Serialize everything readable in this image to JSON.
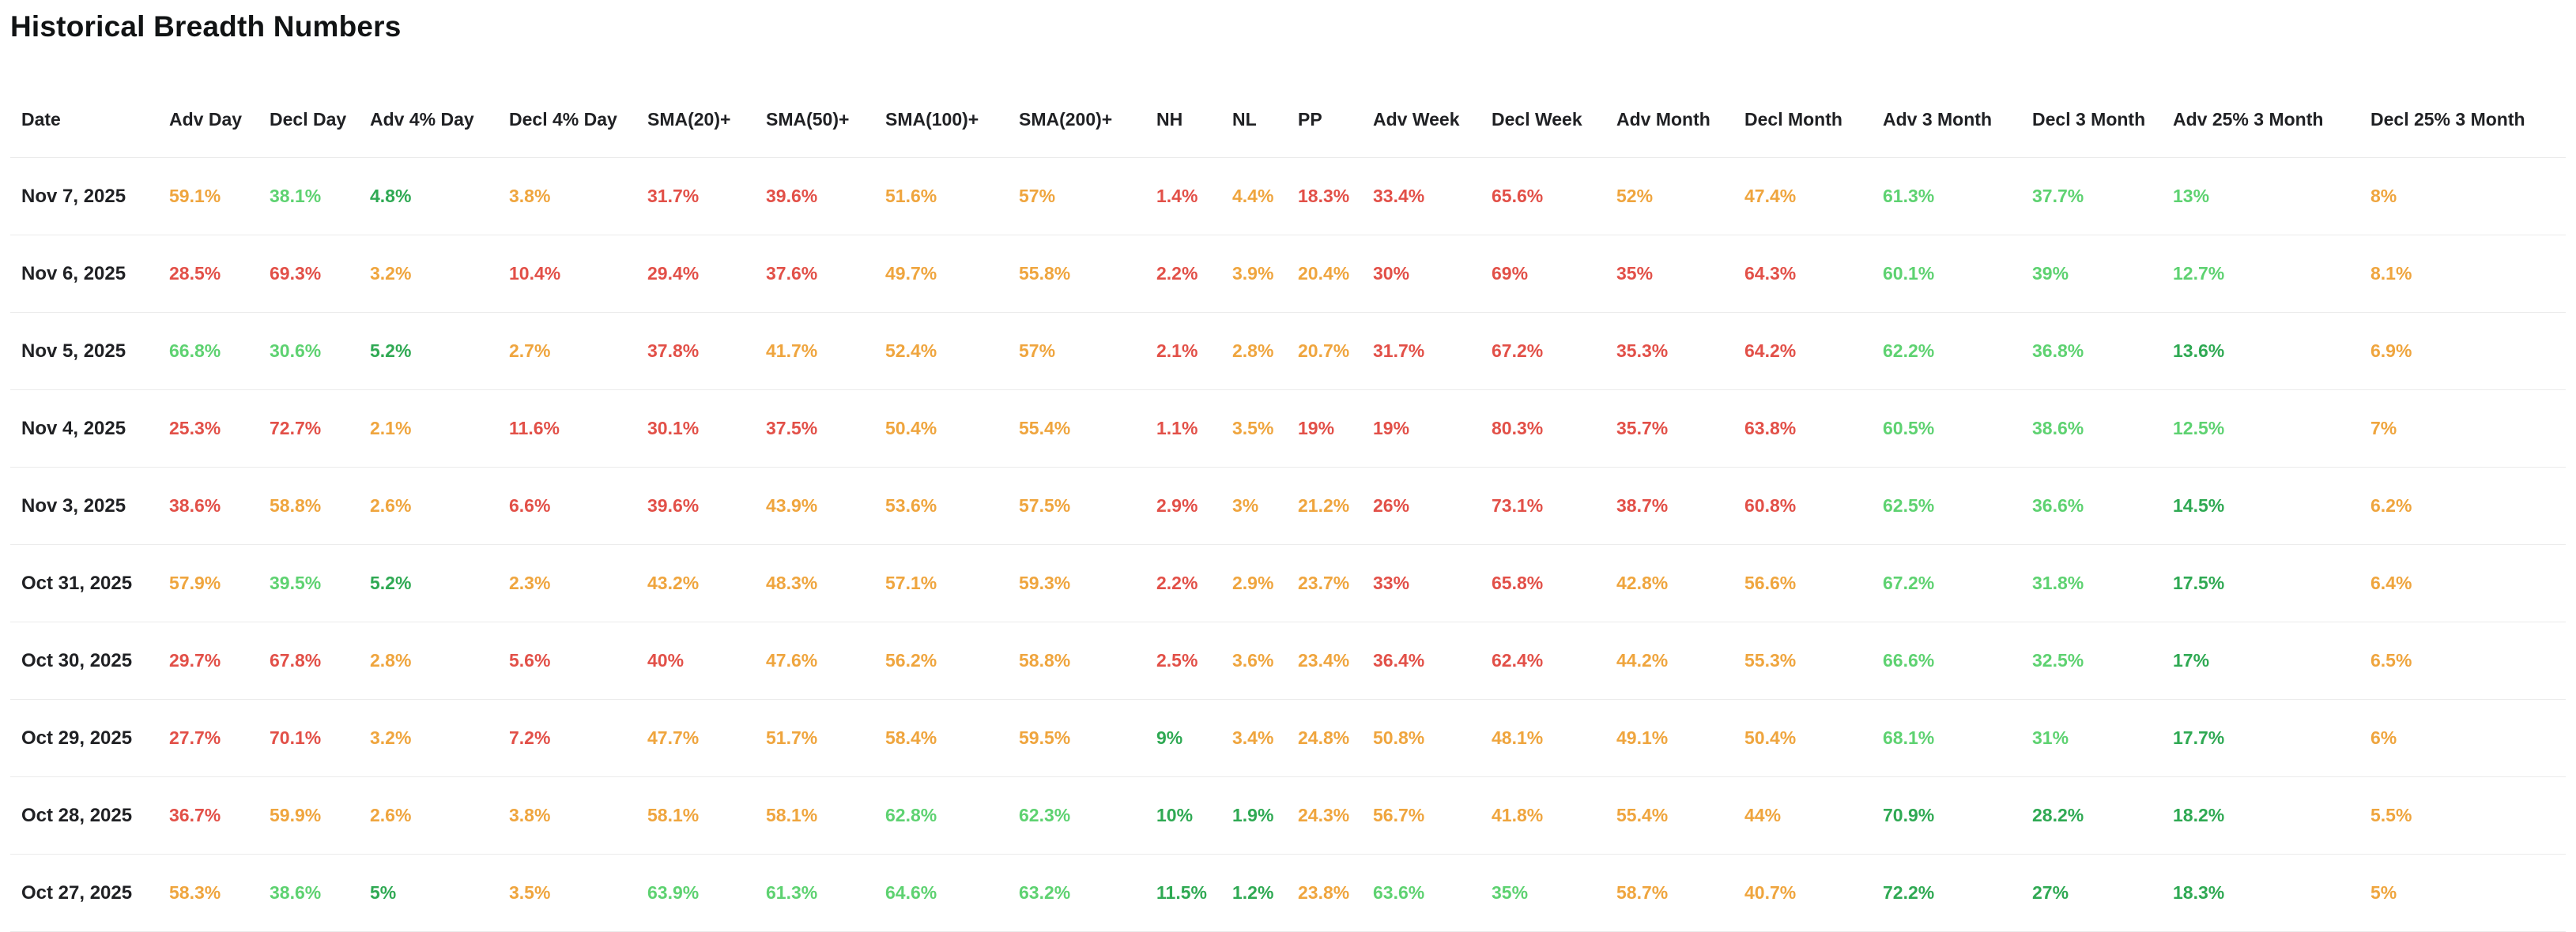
{
  "title": "Historical Breadth Numbers",
  "colors": {
    "red": "#e25048",
    "orange": "#efa53e",
    "green": "#5ed271",
    "dark_green": "#2fa953",
    "header_text": "#202124",
    "date_text": "#202124",
    "row_border": "#ebebeb"
  },
  "table": {
    "columns": [
      "Date",
      "Adv Day",
      "Decl Day",
      "Adv 4% Day",
      "Decl 4% Day",
      "SMA(20)+",
      "SMA(50)+",
      "SMA(100)+",
      "SMA(200)+",
      "NH",
      "NL",
      "PP",
      "Adv Week",
      "Decl Week",
      "Adv Month",
      "Decl Month",
      "Adv 3 Month",
      "Decl 3 Month",
      "Adv 25% 3 Month",
      "Decl 25% 3 Month"
    ],
    "rows": [
      {
        "date": "Nov 7, 2025",
        "cells": [
          [
            "59.1%",
            "orange"
          ],
          [
            "38.1%",
            "green"
          ],
          [
            "4.8%",
            "dark_green"
          ],
          [
            "3.8%",
            "orange"
          ],
          [
            "31.7%",
            "red"
          ],
          [
            "39.6%",
            "red"
          ],
          [
            "51.6%",
            "orange"
          ],
          [
            "57%",
            "orange"
          ],
          [
            "1.4%",
            "red"
          ],
          [
            "4.4%",
            "orange"
          ],
          [
            "18.3%",
            "red"
          ],
          [
            "33.4%",
            "red"
          ],
          [
            "65.6%",
            "red"
          ],
          [
            "52%",
            "orange"
          ],
          [
            "47.4%",
            "orange"
          ],
          [
            "61.3%",
            "green"
          ],
          [
            "37.7%",
            "green"
          ],
          [
            "13%",
            "green"
          ],
          [
            "8%",
            "orange"
          ]
        ]
      },
      {
        "date": "Nov 6, 2025",
        "cells": [
          [
            "28.5%",
            "red"
          ],
          [
            "69.3%",
            "red"
          ],
          [
            "3.2%",
            "orange"
          ],
          [
            "10.4%",
            "red"
          ],
          [
            "29.4%",
            "red"
          ],
          [
            "37.6%",
            "red"
          ],
          [
            "49.7%",
            "orange"
          ],
          [
            "55.8%",
            "orange"
          ],
          [
            "2.2%",
            "red"
          ],
          [
            "3.9%",
            "orange"
          ],
          [
            "20.4%",
            "orange"
          ],
          [
            "30%",
            "red"
          ],
          [
            "69%",
            "red"
          ],
          [
            "35%",
            "red"
          ],
          [
            "64.3%",
            "red"
          ],
          [
            "60.1%",
            "green"
          ],
          [
            "39%",
            "green"
          ],
          [
            "12.7%",
            "green"
          ],
          [
            "8.1%",
            "orange"
          ]
        ]
      },
      {
        "date": "Nov 5, 2025",
        "cells": [
          [
            "66.8%",
            "green"
          ],
          [
            "30.6%",
            "green"
          ],
          [
            "5.2%",
            "dark_green"
          ],
          [
            "2.7%",
            "orange"
          ],
          [
            "37.8%",
            "red"
          ],
          [
            "41.7%",
            "orange"
          ],
          [
            "52.4%",
            "orange"
          ],
          [
            "57%",
            "orange"
          ],
          [
            "2.1%",
            "red"
          ],
          [
            "2.8%",
            "orange"
          ],
          [
            "20.7%",
            "orange"
          ],
          [
            "31.7%",
            "red"
          ],
          [
            "67.2%",
            "red"
          ],
          [
            "35.3%",
            "red"
          ],
          [
            "64.2%",
            "red"
          ],
          [
            "62.2%",
            "green"
          ],
          [
            "36.8%",
            "green"
          ],
          [
            "13.6%",
            "dark_green"
          ],
          [
            "6.9%",
            "orange"
          ]
        ]
      },
      {
        "date": "Nov 4, 2025",
        "cells": [
          [
            "25.3%",
            "red"
          ],
          [
            "72.7%",
            "red"
          ],
          [
            "2.1%",
            "orange"
          ],
          [
            "11.6%",
            "red"
          ],
          [
            "30.1%",
            "red"
          ],
          [
            "37.5%",
            "red"
          ],
          [
            "50.4%",
            "orange"
          ],
          [
            "55.4%",
            "orange"
          ],
          [
            "1.1%",
            "red"
          ],
          [
            "3.5%",
            "orange"
          ],
          [
            "19%",
            "red"
          ],
          [
            "19%",
            "red"
          ],
          [
            "80.3%",
            "red"
          ],
          [
            "35.7%",
            "red"
          ],
          [
            "63.8%",
            "red"
          ],
          [
            "60.5%",
            "green"
          ],
          [
            "38.6%",
            "green"
          ],
          [
            "12.5%",
            "green"
          ],
          [
            "7%",
            "orange"
          ]
        ]
      },
      {
        "date": "Nov 3, 2025",
        "cells": [
          [
            "38.6%",
            "red"
          ],
          [
            "58.8%",
            "orange"
          ],
          [
            "2.6%",
            "orange"
          ],
          [
            "6.6%",
            "red"
          ],
          [
            "39.6%",
            "red"
          ],
          [
            "43.9%",
            "orange"
          ],
          [
            "53.6%",
            "orange"
          ],
          [
            "57.5%",
            "orange"
          ],
          [
            "2.9%",
            "red"
          ],
          [
            "3%",
            "orange"
          ],
          [
            "21.2%",
            "orange"
          ],
          [
            "26%",
            "red"
          ],
          [
            "73.1%",
            "red"
          ],
          [
            "38.7%",
            "red"
          ],
          [
            "60.8%",
            "red"
          ],
          [
            "62.5%",
            "green"
          ],
          [
            "36.6%",
            "green"
          ],
          [
            "14.5%",
            "dark_green"
          ],
          [
            "6.2%",
            "orange"
          ]
        ]
      },
      {
        "date": "Oct 31, 2025",
        "cells": [
          [
            "57.9%",
            "orange"
          ],
          [
            "39.5%",
            "green"
          ],
          [
            "5.2%",
            "dark_green"
          ],
          [
            "2.3%",
            "orange"
          ],
          [
            "43.2%",
            "orange"
          ],
          [
            "48.3%",
            "orange"
          ],
          [
            "57.1%",
            "orange"
          ],
          [
            "59.3%",
            "orange"
          ],
          [
            "2.2%",
            "red"
          ],
          [
            "2.9%",
            "orange"
          ],
          [
            "23.7%",
            "orange"
          ],
          [
            "33%",
            "red"
          ],
          [
            "65.8%",
            "red"
          ],
          [
            "42.8%",
            "orange"
          ],
          [
            "56.6%",
            "orange"
          ],
          [
            "67.2%",
            "green"
          ],
          [
            "31.8%",
            "green"
          ],
          [
            "17.5%",
            "dark_green"
          ],
          [
            "6.4%",
            "orange"
          ]
        ]
      },
      {
        "date": "Oct 30, 2025",
        "cells": [
          [
            "29.7%",
            "red"
          ],
          [
            "67.8%",
            "red"
          ],
          [
            "2.8%",
            "orange"
          ],
          [
            "5.6%",
            "red"
          ],
          [
            "40%",
            "red"
          ],
          [
            "47.6%",
            "orange"
          ],
          [
            "56.2%",
            "orange"
          ],
          [
            "58.8%",
            "orange"
          ],
          [
            "2.5%",
            "red"
          ],
          [
            "3.6%",
            "orange"
          ],
          [
            "23.4%",
            "orange"
          ],
          [
            "36.4%",
            "red"
          ],
          [
            "62.4%",
            "red"
          ],
          [
            "44.2%",
            "orange"
          ],
          [
            "55.3%",
            "orange"
          ],
          [
            "66.6%",
            "green"
          ],
          [
            "32.5%",
            "green"
          ],
          [
            "17%",
            "dark_green"
          ],
          [
            "6.5%",
            "orange"
          ]
        ]
      },
      {
        "date": "Oct 29, 2025",
        "cells": [
          [
            "27.7%",
            "red"
          ],
          [
            "70.1%",
            "red"
          ],
          [
            "3.2%",
            "orange"
          ],
          [
            "7.2%",
            "red"
          ],
          [
            "47.7%",
            "orange"
          ],
          [
            "51.7%",
            "orange"
          ],
          [
            "58.4%",
            "orange"
          ],
          [
            "59.5%",
            "orange"
          ],
          [
            "9%",
            "dark_green"
          ],
          [
            "3.4%",
            "orange"
          ],
          [
            "24.8%",
            "orange"
          ],
          [
            "50.8%",
            "orange"
          ],
          [
            "48.1%",
            "orange"
          ],
          [
            "49.1%",
            "orange"
          ],
          [
            "50.4%",
            "orange"
          ],
          [
            "68.1%",
            "green"
          ],
          [
            "31%",
            "green"
          ],
          [
            "17.7%",
            "dark_green"
          ],
          [
            "6%",
            "orange"
          ]
        ]
      },
      {
        "date": "Oct 28, 2025",
        "cells": [
          [
            "36.7%",
            "red"
          ],
          [
            "59.9%",
            "orange"
          ],
          [
            "2.6%",
            "orange"
          ],
          [
            "3.8%",
            "orange"
          ],
          [
            "58.1%",
            "orange"
          ],
          [
            "58.1%",
            "orange"
          ],
          [
            "62.8%",
            "green"
          ],
          [
            "62.3%",
            "green"
          ],
          [
            "10%",
            "dark_green"
          ],
          [
            "1.9%",
            "dark_green"
          ],
          [
            "24.3%",
            "orange"
          ],
          [
            "56.7%",
            "orange"
          ],
          [
            "41.8%",
            "orange"
          ],
          [
            "55.4%",
            "orange"
          ],
          [
            "44%",
            "orange"
          ],
          [
            "70.9%",
            "dark_green"
          ],
          [
            "28.2%",
            "dark_green"
          ],
          [
            "18.2%",
            "dark_green"
          ],
          [
            "5.5%",
            "orange"
          ]
        ]
      },
      {
        "date": "Oct 27, 2025",
        "cells": [
          [
            "58.3%",
            "orange"
          ],
          [
            "38.6%",
            "green"
          ],
          [
            "5%",
            "dark_green"
          ],
          [
            "3.5%",
            "orange"
          ],
          [
            "63.9%",
            "green"
          ],
          [
            "61.3%",
            "green"
          ],
          [
            "64.6%",
            "green"
          ],
          [
            "63.2%",
            "green"
          ],
          [
            "11.5%",
            "dark_green"
          ],
          [
            "1.2%",
            "dark_green"
          ],
          [
            "23.8%",
            "orange"
          ],
          [
            "63.6%",
            "green"
          ],
          [
            "35%",
            "green"
          ],
          [
            "58.7%",
            "orange"
          ],
          [
            "40.7%",
            "orange"
          ],
          [
            "72.2%",
            "dark_green"
          ],
          [
            "27%",
            "dark_green"
          ],
          [
            "18.3%",
            "dark_green"
          ],
          [
            "5%",
            "orange"
          ]
        ]
      }
    ]
  }
}
